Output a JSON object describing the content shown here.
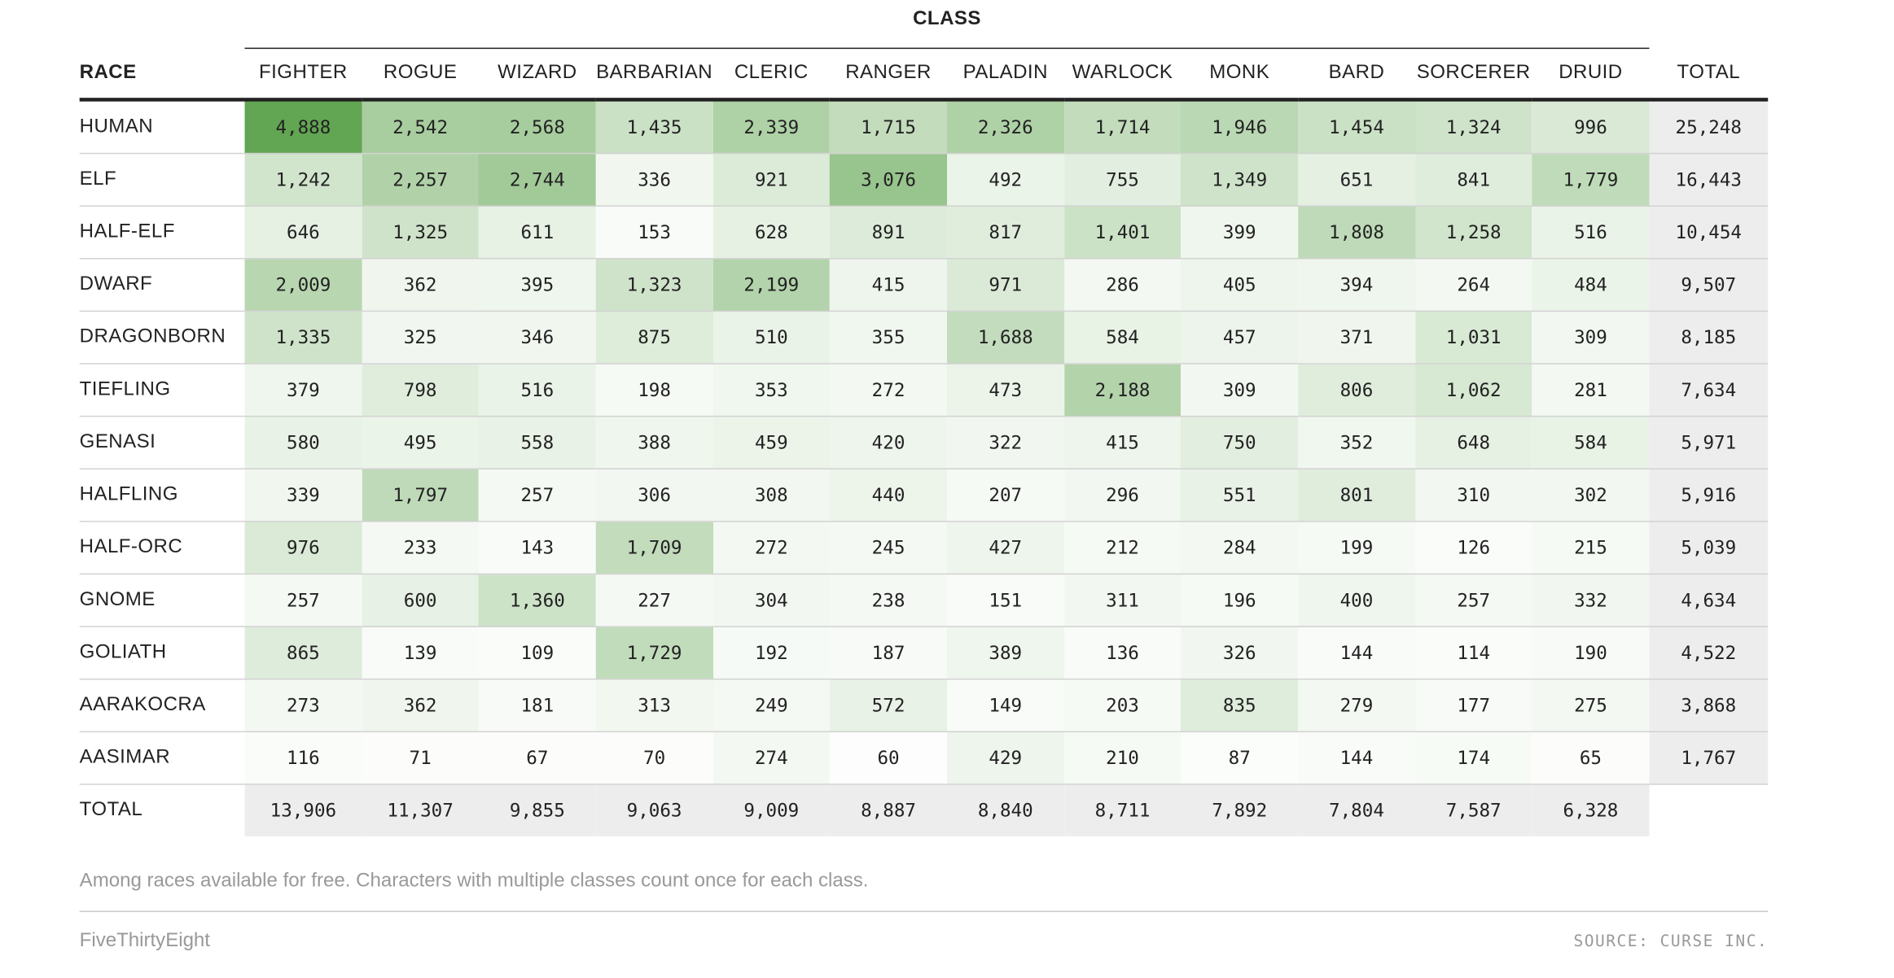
{
  "chart_data": {
    "type": "table",
    "column_group_label": "CLASS",
    "row_header": "RACE",
    "columns": [
      "FIGHTER",
      "ROGUE",
      "WIZARD",
      "BARBARIAN",
      "CLERIC",
      "RANGER",
      "PALADIN",
      "WARLOCK",
      "MONK",
      "BARD",
      "SORCERER",
      "DRUID"
    ],
    "total_label": "TOTAL",
    "rows": [
      {
        "race": "HUMAN",
        "values": [
          4888,
          2542,
          2568,
          1435,
          2339,
          1715,
          2326,
          1714,
          1946,
          1454,
          1324,
          996
        ],
        "total": 25248
      },
      {
        "race": "ELF",
        "values": [
          1242,
          2257,
          2744,
          336,
          921,
          3076,
          492,
          755,
          1349,
          651,
          841,
          1779
        ],
        "total": 16443
      },
      {
        "race": "HALF-ELF",
        "values": [
          646,
          1325,
          611,
          153,
          628,
          891,
          817,
          1401,
          399,
          1808,
          1258,
          516
        ],
        "total": 10454
      },
      {
        "race": "DWARF",
        "values": [
          2009,
          362,
          395,
          1323,
          2199,
          415,
          971,
          286,
          405,
          394,
          264,
          484
        ],
        "total": 9507
      },
      {
        "race": "DRAGONBORN",
        "values": [
          1335,
          325,
          346,
          875,
          510,
          355,
          1688,
          584,
          457,
          371,
          1031,
          309
        ],
        "total": 8185
      },
      {
        "race": "TIEFLING",
        "values": [
          379,
          798,
          516,
          198,
          353,
          272,
          473,
          2188,
          309,
          806,
          1062,
          281
        ],
        "total": 7634
      },
      {
        "race": "GENASI",
        "values": [
          580,
          495,
          558,
          388,
          459,
          420,
          322,
          415,
          750,
          352,
          648,
          584
        ],
        "total": 5971
      },
      {
        "race": "HALFLING",
        "values": [
          339,
          1797,
          257,
          306,
          308,
          440,
          207,
          296,
          551,
          801,
          310,
          302
        ],
        "total": 5916
      },
      {
        "race": "HALF-ORC",
        "values": [
          976,
          233,
          143,
          1709,
          272,
          245,
          427,
          212,
          284,
          199,
          126,
          215
        ],
        "total": 5039
      },
      {
        "race": "GNOME",
        "values": [
          257,
          600,
          1360,
          227,
          304,
          238,
          151,
          311,
          196,
          400,
          257,
          332
        ],
        "total": 4634
      },
      {
        "race": "GOLIATH",
        "values": [
          865,
          139,
          109,
          1729,
          192,
          187,
          389,
          136,
          326,
          144,
          114,
          190
        ],
        "total": 4522
      },
      {
        "race": "AARAKOCRA",
        "values": [
          273,
          362,
          181,
          313,
          249,
          572,
          149,
          203,
          835,
          279,
          177,
          275
        ],
        "total": 3868
      },
      {
        "race": "AASIMAR",
        "values": [
          116,
          71,
          67,
          70,
          274,
          60,
          429,
          210,
          87,
          144,
          174,
          65
        ],
        "total": 1767
      }
    ],
    "column_totals": [
      13906,
      11307,
      9855,
      9063,
      9009,
      8887,
      8840,
      8711,
      7892,
      7804,
      7587,
      6328
    ],
    "color_scale": {
      "low": "#ffffff",
      "high": "#62a552"
    }
  },
  "footer": {
    "note": "Among races available for free. Characters with multiple classes count once for each class.",
    "brand": "FiveThirtyEight",
    "source": "SOURCE: CURSE INC."
  }
}
